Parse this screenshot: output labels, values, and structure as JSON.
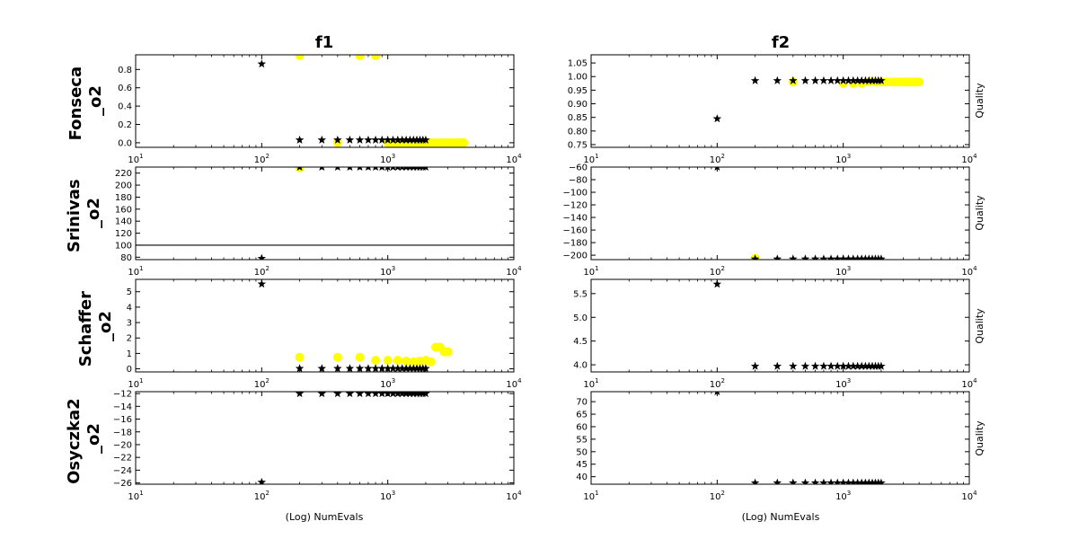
{
  "figure": {
    "columns": [
      "f1",
      "f2"
    ],
    "rows": [
      {
        "line1": "Fonseca",
        "line2": "_o2"
      },
      {
        "line1": "Srinivas",
        "line2": "_o2"
      },
      {
        "line1": "Schaffer",
        "line2": "_o2"
      },
      {
        "line1": "Osyczka2",
        "line2": "_o2"
      }
    ],
    "right_label": "Quality",
    "xlabel": "(Log) NumEvals",
    "colors": {
      "star": "#000000",
      "dot": "#ffff00",
      "line": "#000000"
    }
  },
  "chart_data": [
    {
      "type": "scatter",
      "row": 0,
      "col": 0,
      "xscale": "log",
      "xlim": [
        10,
        10000
      ],
      "ylim": [
        -0.05,
        0.96
      ],
      "xticks": [
        10,
        100,
        1000,
        10000
      ],
      "yticks": [
        0.0,
        0.2,
        0.4,
        0.6,
        0.8
      ],
      "ytick_labels": [
        "0.0",
        "0.2",
        "0.4",
        "0.6",
        "0.8"
      ],
      "series": [
        {
          "marker": "dot",
          "x": [
            200,
            400,
            600,
            800,
            1000,
            1100,
            1200,
            1300,
            1400,
            1500,
            1600,
            1700,
            1800,
            1900,
            2000,
            2200,
            2400,
            2600,
            2800,
            3000,
            3200,
            3400,
            3600,
            3800,
            4000
          ],
          "y": [
            0.95,
            0.0,
            0.95,
            0.95,
            0.0,
            0.0,
            0.0,
            0.0,
            0.0,
            0.0,
            0.0,
            0.0,
            0.0,
            0.0,
            0.0,
            0.0,
            0.0,
            0.0,
            0.0,
            0.0,
            0.0,
            0.0,
            0.0,
            0.0,
            0.0
          ]
        },
        {
          "marker": "star",
          "x": [
            100,
            200,
            300,
            400,
            500,
            600,
            700,
            800,
            900,
            1000,
            1100,
            1200,
            1300,
            1400,
            1500,
            1600,
            1700,
            1800,
            1900,
            2000
          ],
          "y": [
            0.86,
            0.03,
            0.03,
            0.03,
            0.03,
            0.03,
            0.03,
            0.03,
            0.03,
            0.03,
            0.03,
            0.03,
            0.03,
            0.03,
            0.03,
            0.03,
            0.03,
            0.03,
            0.03,
            0.03
          ]
        }
      ]
    },
    {
      "type": "scatter",
      "row": 0,
      "col": 1,
      "xscale": "log",
      "xlim": [
        10,
        10000
      ],
      "ylim": [
        0.74,
        1.08
      ],
      "xticks": [
        10,
        100,
        1000,
        10000
      ],
      "yticks": [
        0.75,
        0.8,
        0.85,
        0.9,
        0.95,
        1.0,
        1.05
      ],
      "ytick_labels": [
        "0.75",
        "0.80",
        "0.85",
        "0.90",
        "0.95",
        "1.00",
        "1.05"
      ],
      "series": [
        {
          "marker": "dot",
          "x": [
            400,
            1000,
            1200,
            1400,
            1600,
            1800,
            2000,
            2200,
            2400,
            2600,
            2800,
            3000,
            3200,
            3400,
            3600,
            3800,
            4000
          ],
          "y": [
            0.98,
            0.975,
            0.975,
            0.975,
            0.98,
            0.98,
            0.98,
            0.98,
            0.98,
            0.98,
            0.98,
            0.98,
            0.98,
            0.98,
            0.98,
            0.98,
            0.98
          ]
        },
        {
          "marker": "star",
          "x": [
            100,
            200,
            300,
            400,
            500,
            600,
            700,
            800,
            900,
            1000,
            1100,
            1200,
            1300,
            1400,
            1500,
            1600,
            1700,
            1800,
            1900,
            2000
          ],
          "y": [
            0.845,
            0.985,
            0.985,
            0.985,
            0.985,
            0.985,
            0.985,
            0.985,
            0.985,
            0.985,
            0.985,
            0.985,
            0.985,
            0.985,
            0.985,
            0.985,
            0.985,
            0.985,
            0.985,
            0.985
          ]
        }
      ]
    },
    {
      "type": "scatter",
      "row": 1,
      "col": 0,
      "xscale": "log",
      "xlim": [
        10,
        10000
      ],
      "ylim": [
        76,
        230
      ],
      "xticks": [
        10,
        100,
        1000,
        10000
      ],
      "yticks": [
        80,
        100,
        120,
        140,
        160,
        180,
        200,
        220
      ],
      "ytick_labels": [
        "80",
        "100",
        "120",
        "140",
        "160",
        "180",
        "200",
        "220"
      ],
      "hline": 100,
      "series": [
        {
          "marker": "dot",
          "x": [
            200
          ],
          "y": [
            229
          ]
        },
        {
          "marker": "star",
          "x": [
            100,
            200,
            300,
            400,
            500,
            600,
            700,
            800,
            900,
            1000,
            1100,
            1200,
            1300,
            1400,
            1500,
            1600,
            1700,
            1800,
            1900,
            2000
          ],
          "y": [
            78,
            230,
            230,
            230,
            230,
            230,
            230,
            230,
            230,
            230,
            230,
            230,
            230,
            230,
            230,
            230,
            230,
            230,
            230,
            230
          ]
        }
      ]
    },
    {
      "type": "scatter",
      "row": 1,
      "col": 1,
      "xscale": "log",
      "xlim": [
        10,
        10000
      ],
      "ylim": [
        -207,
        -60
      ],
      "xticks": [
        10,
        100,
        1000,
        10000
      ],
      "yticks": [
        -60,
        -80,
        -100,
        -120,
        -140,
        -160,
        -180,
        -200
      ],
      "ytick_labels": [
        "−60",
        "−80",
        "−100",
        "−120",
        "−140",
        "−160",
        "−180",
        "−200"
      ],
      "series": [
        {
          "marker": "dot",
          "x": [
            200
          ],
          "y": [
            -205
          ]
        },
        {
          "marker": "star",
          "x": [
            100,
            200,
            300,
            400,
            500,
            600,
            700,
            800,
            900,
            1000,
            1100,
            1200,
            1300,
            1400,
            1500,
            1600,
            1700,
            1800,
            1900,
            2000
          ],
          "y": [
            -60,
            -206,
            -206,
            -206,
            -206,
            -206,
            -206,
            -206,
            -206,
            -206,
            -206,
            -206,
            -206,
            -206,
            -206,
            -206,
            -206,
            -206,
            -206,
            -206
          ]
        }
      ]
    },
    {
      "type": "scatter",
      "row": 2,
      "col": 0,
      "xscale": "log",
      "xlim": [
        10,
        10000
      ],
      "ylim": [
        -0.2,
        5.8
      ],
      "xticks": [
        10,
        100,
        1000,
        10000
      ],
      "yticks": [
        0,
        1,
        2,
        3,
        4,
        5
      ],
      "ytick_labels": [
        "0",
        "1",
        "2",
        "3",
        "4",
        "5"
      ],
      "series": [
        {
          "marker": "dot",
          "x": [
            200,
            400,
            600,
            800,
            1000,
            1200,
            1400,
            1600,
            1800,
            2000,
            2200,
            2400,
            2600,
            2800,
            3000
          ],
          "y": [
            0.75,
            0.75,
            0.75,
            0.55,
            0.55,
            0.55,
            0.5,
            0.45,
            0.5,
            0.55,
            0.45,
            1.4,
            1.4,
            1.1,
            1.1
          ]
        },
        {
          "marker": "star",
          "x": [
            100,
            200,
            300,
            400,
            500,
            600,
            700,
            800,
            900,
            1000,
            1100,
            1200,
            1300,
            1400,
            1500,
            1600,
            1700,
            1800,
            1900,
            2000
          ],
          "y": [
            5.5,
            0.02,
            0.02,
            0.02,
            0.02,
            0.02,
            0.02,
            0.02,
            0.02,
            0.02,
            0.02,
            0.02,
            0.02,
            0.02,
            0.02,
            0.02,
            0.02,
            0.02,
            0.02,
            0.02
          ]
        }
      ]
    },
    {
      "type": "scatter",
      "row": 2,
      "col": 1,
      "xscale": "log",
      "xlim": [
        10,
        10000
      ],
      "ylim": [
        3.85,
        5.8
      ],
      "xticks": [
        10,
        100,
        1000,
        10000
      ],
      "yticks": [
        4.0,
        4.5,
        5.0,
        5.5
      ],
      "ytick_labels": [
        "4.0",
        "4.5",
        "5.0",
        "5.5"
      ],
      "series": [
        {
          "marker": "star",
          "x": [
            100,
            200,
            300,
            400,
            500,
            600,
            700,
            800,
            900,
            1000,
            1100,
            1200,
            1300,
            1400,
            1500,
            1600,
            1700,
            1800,
            1900,
            2000
          ],
          "y": [
            5.7,
            3.97,
            3.97,
            3.97,
            3.97,
            3.97,
            3.97,
            3.97,
            3.97,
            3.97,
            3.97,
            3.97,
            3.97,
            3.97,
            3.97,
            3.97,
            3.97,
            3.97,
            3.97,
            3.97
          ]
        }
      ]
    },
    {
      "type": "scatter",
      "row": 3,
      "col": 0,
      "xscale": "log",
      "xlim": [
        10,
        10000
      ],
      "ylim": [
        -26.2,
        -11.7
      ],
      "xticks": [
        10,
        100,
        1000,
        10000
      ],
      "yticks": [
        -12,
        -14,
        -16,
        -18,
        -20,
        -22,
        -24,
        -26
      ],
      "ytick_labels": [
        "−12",
        "−14",
        "−16",
        "−18",
        "−20",
        "−22",
        "−24",
        "−26"
      ],
      "series": [
        {
          "marker": "star",
          "x": [
            100,
            200,
            300,
            400,
            500,
            600,
            700,
            800,
            900,
            1000,
            1100,
            1200,
            1300,
            1400,
            1500,
            1600,
            1700,
            1800,
            1900,
            2000
          ],
          "y": [
            -25.9,
            -12.0,
            -12.0,
            -12.0,
            -12.0,
            -12.0,
            -12.0,
            -12.0,
            -12.0,
            -12.0,
            -12.0,
            -12.0,
            -12.0,
            -12.0,
            -12.0,
            -12.0,
            -12.0,
            -12.0,
            -12.0,
            -12.0
          ]
        }
      ]
    },
    {
      "type": "scatter",
      "row": 3,
      "col": 1,
      "xscale": "log",
      "xlim": [
        10,
        10000
      ],
      "ylim": [
        37,
        74
      ],
      "xticks": [
        10,
        100,
        1000,
        10000
      ],
      "yticks": [
        40,
        45,
        50,
        55,
        60,
        65,
        70
      ],
      "ytick_labels": [
        "40",
        "45",
        "50",
        "55",
        "60",
        "65",
        "70"
      ],
      "series": [
        {
          "marker": "star",
          "x": [
            100,
            200,
            300,
            400,
            500,
            600,
            700,
            800,
            900,
            1000,
            1100,
            1200,
            1300,
            1400,
            1500,
            1600,
            1700,
            1800,
            1900,
            2000
          ],
          "y": [
            74,
            37.5,
            37.5,
            37.5,
            37.5,
            37.5,
            37.5,
            37.5,
            37.5,
            37.5,
            37.5,
            37.5,
            37.5,
            37.5,
            37.5,
            37.5,
            37.5,
            37.5,
            37.5,
            37.5
          ]
        }
      ]
    }
  ]
}
